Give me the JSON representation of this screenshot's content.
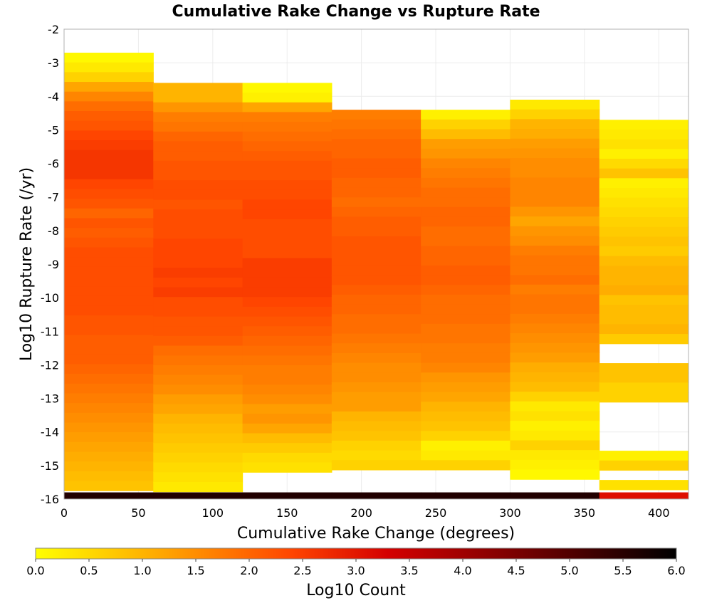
{
  "chart_data": {
    "type": "heatmap",
    "title": "Cumulative Rake Change vs Rupture Rate",
    "xlabel": "Cumulative Rake Change (degrees)",
    "ylabel": "Log10 Rupture Rate (/yr)",
    "xlim": [
      0,
      420
    ],
    "ylim": [
      -16,
      -2
    ],
    "x_ticks": [
      "0",
      "50",
      "100",
      "150",
      "200",
      "250",
      "300",
      "350",
      "400"
    ],
    "y_ticks": [
      "-2",
      "-3",
      "-4",
      "-5",
      "-6",
      "-7",
      "-8",
      "-9",
      "-10",
      "-11",
      "-12",
      "-13",
      "-14",
      "-15",
      "-16"
    ],
    "grid": true,
    "x_bin_edges": [
      0,
      60,
      120,
      180,
      240,
      300,
      360,
      420
    ],
    "y_bin_height": 0.29,
    "colorbar": {
      "label": "Log10 Count",
      "range": [
        0,
        6
      ],
      "ticks": [
        "0.0",
        "0.5",
        "1.0",
        "1.5",
        "2.0",
        "2.5",
        "3.0",
        "3.5",
        "4.0",
        "4.5",
        "5.0",
        "5.5",
        "6.0"
      ],
      "colormap": [
        "#ffff00",
        "#ffa500",
        "#ff4500",
        "#d40000",
        "#7a0000",
        "#000000"
      ]
    },
    "columns": [
      {
        "x": "0-60",
        "y_top": -2.7,
        "values": [
          0.1,
          0.3,
          0.6,
          1.2,
          1.6,
          1.9,
          2.1,
          2.2,
          2.4,
          2.5,
          2.6,
          2.6,
          2.6,
          2.4,
          2.3,
          2.2,
          2.0,
          2.2,
          2.1,
          2.2,
          2.3,
          2.3,
          2.3,
          2.3,
          2.3,
          2.3,
          2.3,
          2.2,
          2.2,
          2.1,
          2.1,
          2.1,
          2.0,
          1.9,
          1.8,
          1.7,
          1.6,
          1.5,
          1.4,
          1.3,
          1.2,
          1.1,
          1.0,
          0.9,
          0.8
        ],
        "bottom_value": 5.6
      },
      {
        "x": "60-120",
        "y_top": -3.6,
        "values": [
          1.0,
          1.0,
          1.4,
          1.7,
          1.8,
          2.0,
          2.1,
          2.1,
          2.2,
          2.2,
          2.3,
          2.3,
          2.2,
          2.3,
          2.3,
          2.3,
          2.4,
          2.4,
          2.4,
          2.5,
          2.4,
          2.5,
          2.3,
          2.3,
          2.2,
          2.2,
          2.1,
          1.9,
          1.8,
          1.7,
          1.6,
          1.5,
          1.3,
          1.2,
          1.0,
          0.9,
          0.8,
          0.7,
          0.6,
          0.5,
          0.4,
          0.3
        ],
        "bottom_value": 5.6
      },
      {
        "x": "120-180",
        "y_top": -3.6,
        "values": [
          0.1,
          0.2,
          1.2,
          1.7,
          1.8,
          1.9,
          2.0,
          2.1,
          2.2,
          2.2,
          2.3,
          2.3,
          2.4,
          2.4,
          2.3,
          2.3,
          2.3,
          2.3,
          2.5,
          2.5,
          2.5,
          2.5,
          2.4,
          2.3,
          2.2,
          2.1,
          2.0,
          1.9,
          1.8,
          1.7,
          1.7,
          1.6,
          1.5,
          1.3,
          1.4,
          1.2,
          0.9,
          0.7,
          0.5,
          0.4
        ],
        "bottom_value": 5.6
      },
      {
        "x": "180-240",
        "y_top": -4.4,
        "values": [
          1.7,
          1.8,
          1.9,
          2.0,
          2.0,
          2.1,
          2.1,
          2.0,
          2.0,
          1.9,
          2.0,
          2.1,
          2.1,
          2.2,
          2.2,
          2.2,
          2.2,
          2.2,
          2.1,
          2.0,
          2.0,
          1.9,
          1.9,
          1.8,
          1.7,
          1.6,
          1.5,
          1.5,
          1.4,
          1.3,
          1.3,
          1.0,
          0.9,
          0.8,
          0.6,
          0.5,
          0.6
        ],
        "bottom_value": 5.6
      },
      {
        "x": "240-300",
        "y_top": -4.4,
        "values": [
          0.2,
          0.6,
          0.9,
          1.3,
          1.4,
          1.6,
          1.7,
          1.8,
          1.9,
          1.9,
          2.0,
          2.0,
          1.9,
          1.9,
          2.0,
          2.0,
          2.1,
          2.1,
          2.0,
          1.9,
          1.9,
          1.9,
          1.8,
          1.8,
          1.7,
          1.7,
          1.6,
          1.4,
          1.3,
          1.2,
          1.0,
          0.9,
          0.8,
          0.6,
          0.2,
          0.3,
          0.6
        ],
        "bottom_value": 5.6
      },
      {
        "x": "300-360",
        "y_top": -4.1,
        "values": [
          0.3,
          0.6,
          1.0,
          1.1,
          1.3,
          1.4,
          1.5,
          1.5,
          1.6,
          1.6,
          1.6,
          1.4,
          1.2,
          1.4,
          1.5,
          1.7,
          1.8,
          1.8,
          1.9,
          1.7,
          1.8,
          1.8,
          1.7,
          1.6,
          1.5,
          1.4,
          1.3,
          1.1,
          1.0,
          0.9,
          0.6,
          0.3,
          0.4,
          0.2,
          0.3,
          0.6,
          0.3,
          0.2,
          0.1
        ],
        "bottom_value": 5.6
      },
      {
        "x": "360-420",
        "y_top": -4.7,
        "values": [
          0.2,
          0.3,
          0.4,
          0.2,
          0.5,
          0.8,
          0.2,
          0.3,
          0.4,
          0.5,
          0.6,
          0.7,
          0.8,
          0.7,
          0.9,
          1.0,
          1.0,
          1.1,
          0.8,
          0.9,
          0.9,
          1.0,
          0.7,
          null,
          null,
          0.8,
          0.8,
          0.6,
          0.6,
          null,
          null,
          null,
          null,
          null,
          0.2,
          0.6,
          null,
          0.4,
          null,
          null,
          null,
          null,
          null,
          null
        ],
        "bottom_value": 3.1
      }
    ]
  }
}
